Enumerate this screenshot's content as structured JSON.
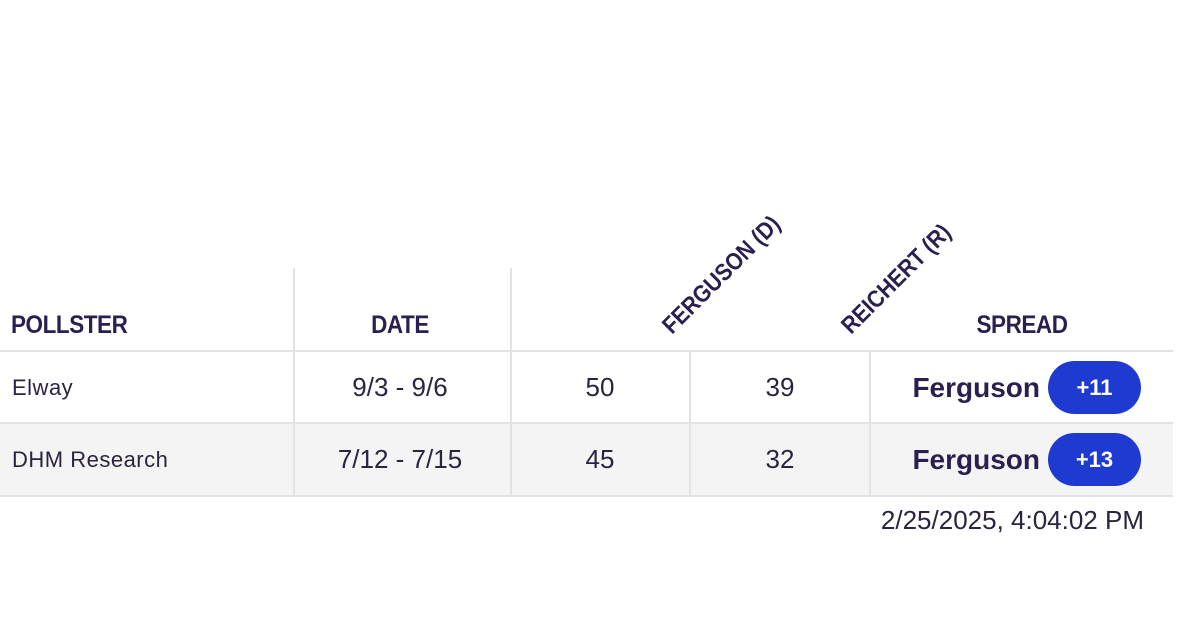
{
  "table": {
    "headers": {
      "pollster": "POLLSTER",
      "date": "DATE",
      "candidate_1": "FERGUSON (D)",
      "candidate_2": "REICHERT (R)",
      "spread": "SPREAD"
    },
    "rows": [
      {
        "pollster": "Elway",
        "date": "9/3 - 9/6",
        "candidate_1": "50",
        "candidate_2": "39",
        "spread_leader": "Ferguson",
        "spread_value": "+11"
      },
      {
        "pollster": "DHM Research",
        "date": "7/12 - 7/15",
        "candidate_1": "45",
        "candidate_2": "32",
        "spread_leader": "Ferguson",
        "spread_value": "+13"
      }
    ]
  },
  "timestamp": "2/25/2025, 4:04:02 PM",
  "colors": {
    "header_text": "#2a1f4f",
    "badge_democrat": "#1f3ad1",
    "grid_line": "#e2e2e2",
    "alt_row": "#f4f4f4"
  }
}
